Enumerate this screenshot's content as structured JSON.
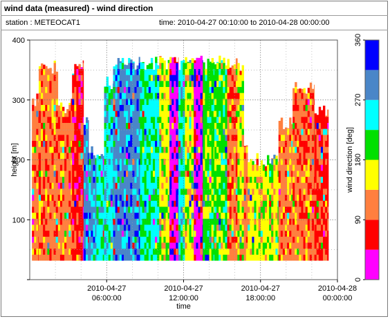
{
  "header": {
    "title": "wind data (measured) - wind direction",
    "station": "station : METEOCAT1",
    "time_range": "time: 2010-04-27 00:10:00 to 2010-04-28 00:00:00"
  },
  "chart_data": {
    "type": "heatmap",
    "xlabel": "time",
    "ylabel": "height [m]",
    "colorbar_label": "wind direction [deg]",
    "x_range_hours": [
      0,
      24
    ],
    "ylim": [
      0,
      400
    ],
    "x_ticks": [
      {
        "hour": 6,
        "line1": "2010-04-27",
        "line2": "06:00:00"
      },
      {
        "hour": 12,
        "line1": "2010-04-27",
        "line2": "12:00:00"
      },
      {
        "hour": 18,
        "line1": "2010-04-27",
        "line2": "18:00:00"
      },
      {
        "hour": 24,
        "line1": "2010-04-28",
        "line2": "00:00:00"
      }
    ],
    "y_ticks": [
      100,
      200,
      300,
      400
    ],
    "colorbar": {
      "range": [
        0,
        360
      ],
      "ticks": [
        0,
        90,
        180,
        270,
        360
      ],
      "bins": [
        {
          "from": 0,
          "to": 45,
          "color": "#ff00ff"
        },
        {
          "from": 45,
          "to": 90,
          "color": "#ff0000"
        },
        {
          "from": 90,
          "to": 135,
          "color": "#ff7f3f"
        },
        {
          "from": 135,
          "to": 180,
          "color": "#ffff00"
        },
        {
          "from": 180,
          "to": 225,
          "color": "#00e000"
        },
        {
          "from": 225,
          "to": 270,
          "color": "#00ffff"
        },
        {
          "from": 270,
          "to": 315,
          "color": "#4a86c8"
        },
        {
          "from": 315,
          "to": 360,
          "color": "#0000ff"
        }
      ]
    },
    "grid": true,
    "segments": [
      {
        "start_h": 0.17,
        "end_h": 0.7,
        "top_m": 300,
        "dominant_deg": 110,
        "note": "orange/red"
      },
      {
        "start_h": 0.7,
        "end_h": 2.2,
        "top_m": 355,
        "dominant_deg": 110
      },
      {
        "start_h": 2.2,
        "end_h": 3.3,
        "top_m": 290,
        "dominant_deg": 112
      },
      {
        "start_h": 3.3,
        "end_h": 4.2,
        "top_m": 355,
        "dominant_deg": 70
      },
      {
        "start_h": 4.2,
        "end_h": 4.6,
        "top_m": 270,
        "dominant_deg": 290
      },
      {
        "start_h": 4.6,
        "end_h": 5.2,
        "top_m": 215,
        "dominant_deg": 290
      },
      {
        "start_h": 5.2,
        "end_h": 5.8,
        "top_m": 210,
        "dominant_deg": 245
      },
      {
        "start_h": 5.8,
        "end_h": 6.5,
        "top_m": 330,
        "dominant_deg": 245
      },
      {
        "start_h": 6.5,
        "end_h": 8.6,
        "top_m": 362,
        "dominant_deg": 290
      },
      {
        "start_h": 8.6,
        "end_h": 10.1,
        "top_m": 362,
        "dominant_deg": 232
      },
      {
        "start_h": 10.1,
        "end_h": 10.9,
        "top_m": 362,
        "dominant_deg": 160
      },
      {
        "start_h": 10.9,
        "end_h": 11.6,
        "top_m": 362,
        "dominant_deg": 20
      },
      {
        "start_h": 11.6,
        "end_h": 12.1,
        "top_m": 362,
        "dominant_deg": 240
      },
      {
        "start_h": 12.1,
        "end_h": 12.8,
        "top_m": 362,
        "dominant_deg": 160
      },
      {
        "start_h": 12.8,
        "end_h": 13.5,
        "top_m": 362,
        "dominant_deg": 20
      },
      {
        "start_h": 13.5,
        "end_h": 14.4,
        "top_m": 362,
        "dominant_deg": 200
      },
      {
        "start_h": 14.4,
        "end_h": 15.4,
        "top_m": 362,
        "dominant_deg": 200
      },
      {
        "start_h": 15.4,
        "end_h": 16.2,
        "top_m": 362,
        "dominant_deg": 110
      },
      {
        "start_h": 16.2,
        "end_h": 16.7,
        "top_m": 360,
        "dominant_deg": 160
      },
      {
        "start_h": 16.7,
        "end_h": 17.0,
        "top_m": 220,
        "dominant_deg": 110
      },
      {
        "start_h": 17.0,
        "end_h": 19.4,
        "top_m": 200,
        "dominant_deg": 160
      },
      {
        "start_h": 19.4,
        "end_h": 20.5,
        "top_m": 260,
        "dominant_deg": 110
      },
      {
        "start_h": 20.5,
        "end_h": 22.2,
        "top_m": 320,
        "dominant_deg": 110
      },
      {
        "start_h": 22.2,
        "end_h": 23.3,
        "top_m": 280,
        "dominant_deg": 80
      }
    ],
    "data_floor_m": 32
  }
}
